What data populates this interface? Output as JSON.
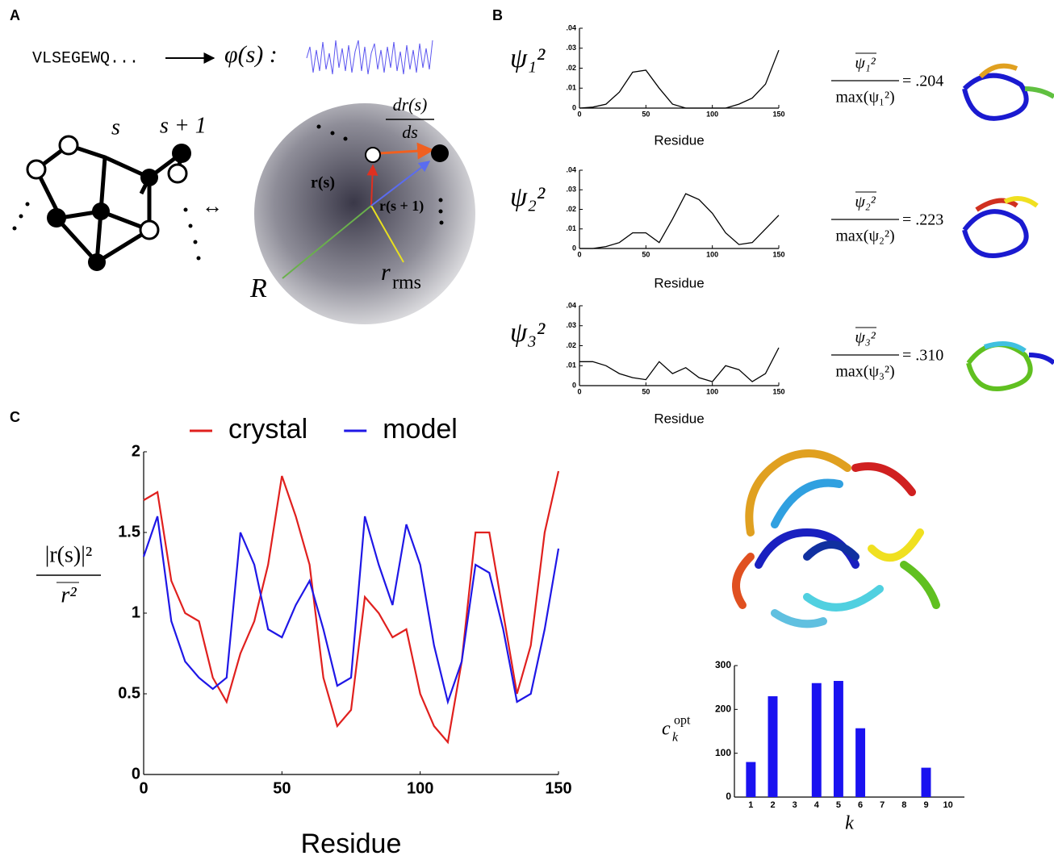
{
  "panel_labels": [
    "A",
    "B",
    "C"
  ],
  "diagram": {
    "sequence": "VLSEGEWQ...",
    "map": "φ(s) :",
    "s": "s",
    "s_next": "s + 1",
    "equiv": "↔",
    "dr_num": "dr(s)",
    "dr_den": "ds",
    "r_s": "r(s)",
    "r_s1": "r(s + 1)",
    "R": "R",
    "r": "r",
    "rms": "rms"
  },
  "panel_b_rows": [
    {
      "psi": "ψ₁²",
      "numerator": "ψ₁²",
      "denominator": "max(ψ₁²)",
      "ratio": "= .204"
    },
    {
      "psi": "ψ₂²",
      "numerator": "ψ₂²",
      "denominator": "max(ψ₂²)",
      "ratio": "= .223"
    },
    {
      "psi": "ψ₃²",
      "numerator": "ψ₃²",
      "denominator": "max(ψ₃²)",
      "ratio": "= .310"
    }
  ],
  "chart_data": [
    {
      "type": "line",
      "xlabel": "Residue",
      "x": [
        0,
        10,
        20,
        30,
        40,
        50,
        60,
        70,
        80,
        90,
        100,
        110,
        120,
        130,
        140,
        150
      ],
      "values": [
        0,
        0.0005,
        0.002,
        0.008,
        0.018,
        0.019,
        0.01,
        0.002,
        0,
        0,
        0,
        0,
        0.002,
        0.005,
        0.012,
        0.029
      ],
      "color": "#000000",
      "xlim": [
        0,
        150
      ],
      "xticks": [
        0,
        50,
        100,
        150
      ],
      "ylim": [
        0,
        0.04
      ],
      "yticks": [
        0,
        {
          "value": 0.01,
          "label": ".01"
        },
        {
          "value": 0.02,
          "label": ".02"
        },
        {
          "value": 0.03,
          "label": ".03"
        },
        {
          "value": 0.04,
          "label": ".04"
        }
      ]
    },
    {
      "type": "line",
      "xlabel": "Residue",
      "x": [
        0,
        10,
        20,
        30,
        40,
        50,
        60,
        70,
        80,
        90,
        100,
        110,
        120,
        130,
        140,
        150
      ],
      "values": [
        0,
        0,
        0.001,
        0.003,
        0.008,
        0.008,
        0.003,
        0.015,
        0.028,
        0.025,
        0.018,
        0.008,
        0.002,
        0.003,
        0.01,
        0.017
      ],
      "color": "#000000",
      "xlim": [
        0,
        150
      ],
      "xticks": [
        0,
        50,
        100,
        150
      ],
      "ylim": [
        0,
        0.04
      ],
      "yticks": [
        0,
        {
          "value": 0.01,
          "label": ".01"
        },
        {
          "value": 0.02,
          "label": ".02"
        },
        {
          "value": 0.03,
          "label": ".03"
        },
        {
          "value": 0.04,
          "label": ".04"
        }
      ]
    },
    {
      "type": "line",
      "xlabel": "Residue",
      "x": [
        0,
        10,
        20,
        30,
        40,
        50,
        60,
        70,
        80,
        90,
        100,
        110,
        120,
        130,
        140,
        150
      ],
      "values": [
        0.012,
        0.012,
        0.01,
        0.006,
        0.004,
        0.003,
        0.012,
        0.006,
        0.009,
        0.004,
        0.002,
        0.01,
        0.008,
        0.002,
        0.006,
        0.019
      ],
      "color": "#000000",
      "xlim": [
        0,
        150
      ],
      "xticks": [
        0,
        50,
        100,
        150
      ],
      "ylim": [
        0,
        0.04
      ],
      "yticks": [
        0,
        {
          "value": 0.01,
          "label": ".01"
        },
        {
          "value": 0.02,
          "label": ".02"
        },
        {
          "value": 0.03,
          "label": ".03"
        },
        {
          "value": 0.04,
          "label": ".04"
        }
      ]
    },
    {
      "type": "line",
      "xlabel": "Residue",
      "ylabel": {
        "numerator": "|r(s)|²",
        "denominator": "r²"
      },
      "x": [
        0,
        5,
        10,
        15,
        20,
        25,
        30,
        35,
        40,
        45,
        50,
        55,
        60,
        65,
        70,
        75,
        80,
        85,
        90,
        95,
        100,
        105,
        110,
        115,
        120,
        125,
        130,
        135,
        140,
        145,
        150
      ],
      "series": [
        {
          "name": "crystal",
          "color": "#e0201e",
          "values": [
            1.7,
            1.75,
            1.2,
            1.0,
            0.95,
            0.6,
            0.45,
            0.75,
            0.95,
            1.3,
            1.85,
            1.6,
            1.3,
            0.6,
            0.3,
            0.4,
            1.1,
            1.0,
            0.85,
            0.9,
            0.5,
            0.3,
            0.2,
            0.7,
            1.5,
            1.5,
            1.0,
            0.5,
            0.8,
            1.5,
            1.88
          ]
        },
        {
          "name": "model",
          "color": "#1f17e6",
          "values": [
            1.35,
            1.6,
            0.95,
            0.7,
            0.6,
            0.53,
            0.6,
            1.5,
            1.3,
            0.9,
            0.85,
            1.05,
            1.2,
            0.9,
            0.55,
            0.6,
            1.6,
            1.3,
            1.05,
            1.55,
            1.3,
            0.8,
            0.45,
            0.7,
            1.3,
            1.25,
            0.9,
            0.45,
            0.5,
            0.9,
            1.4
          ]
        }
      ],
      "xlim": [
        0,
        150
      ],
      "xticks": [
        0,
        50,
        100,
        150
      ],
      "ylim": [
        0,
        2
      ],
      "yticks": [
        0,
        0.5,
        1,
        1.5,
        2
      ]
    },
    {
      "type": "bar",
      "xlabel": "k",
      "ylabel": {
        "base": "c",
        "sub": "k",
        "sup": "opt"
      },
      "categories": [
        "1",
        "2",
        "3",
        "4",
        "5",
        "6",
        "7",
        "8",
        "9",
        "10"
      ],
      "values": [
        80,
        230,
        0,
        260,
        265,
        157,
        0,
        0,
        67,
        0
      ],
      "color": "#1a12f0",
      "ylim": [
        0,
        300
      ],
      "yticks": [
        0,
        100,
        200,
        300
      ]
    }
  ]
}
